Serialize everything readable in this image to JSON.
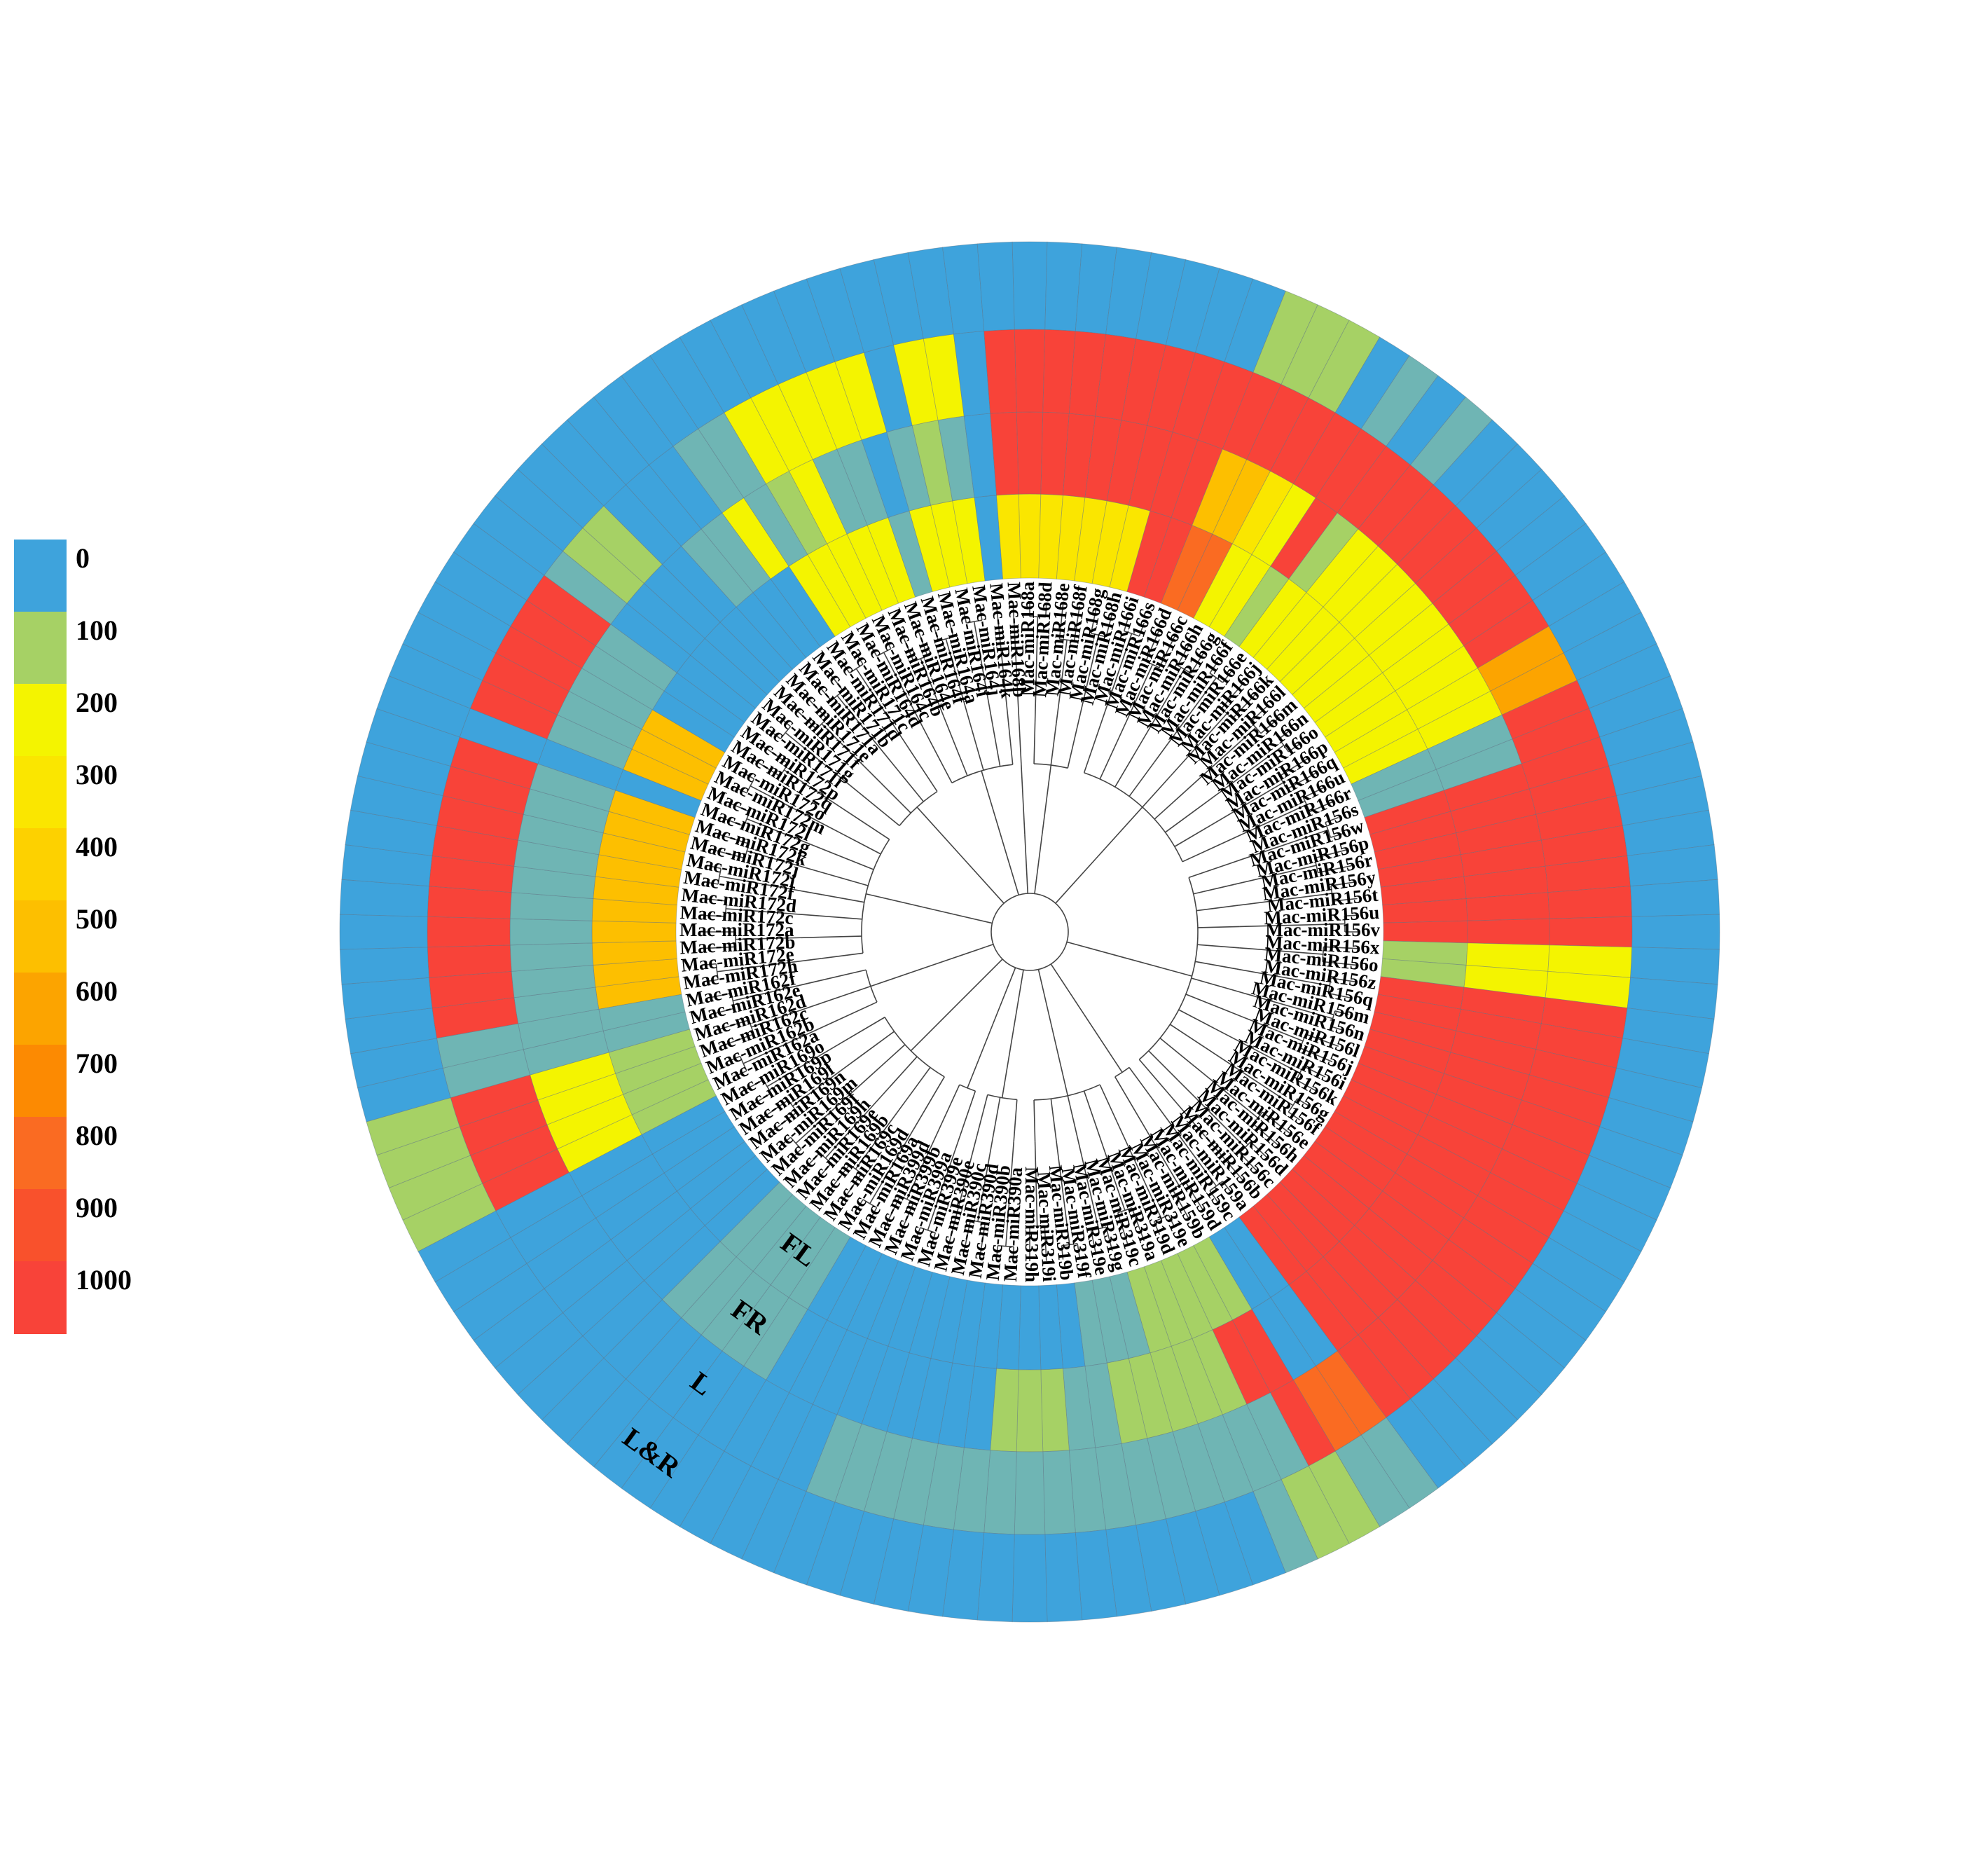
{
  "chart_data": {
    "type": "heatmap",
    "layout": "circular",
    "title": "",
    "color_scale": {
      "breaks": [
        "0",
        "100",
        "200",
        "300",
        "400",
        "500",
        "600",
        "700",
        "800",
        "900",
        "1000"
      ],
      "colors": [
        "#3ea3dc",
        "#a6d165",
        "#f4f400",
        "#fae600",
        "#fdd100",
        "#fdbf00",
        "#fca400",
        "#fc8a02",
        "#fa6b22",
        "#f9512c",
        "#f84339"
      ]
    },
    "rings": [
      "FL",
      "FR",
      "L",
      "L&R"
    ],
    "leaves": [
      {
        "label": "Mac-miR168a",
        "values": [
          300,
          1000,
          1000,
          0
        ]
      },
      {
        "label": "Mac-miR168d",
        "values": [
          300,
          1000,
          1000,
          0
        ]
      },
      {
        "label": "Mac-miR168e",
        "values": [
          300,
          1000,
          1000,
          0
        ]
      },
      {
        "label": "Mac-miR168f",
        "values": [
          300,
          1000,
          1000,
          0
        ]
      },
      {
        "label": "Mac-miR168g",
        "values": [
          300,
          1000,
          1000,
          0
        ]
      },
      {
        "label": "Mac-miR168h",
        "values": [
          300,
          1000,
          1000,
          0
        ]
      },
      {
        "label": "Mac-miR166i",
        "values": [
          1000,
          1000,
          1000,
          0
        ]
      },
      {
        "label": "Mac-miR166s",
        "values": [
          1000,
          1000,
          1000,
          0
        ]
      },
      {
        "label": "Mac-miR166d",
        "values": [
          800,
          500,
          1000,
          100
        ]
      },
      {
        "label": "Mac-miR166c",
        "values": [
          800,
          500,
          1000,
          100
        ]
      },
      {
        "label": "Mac-miR166h",
        "values": [
          200,
          300,
          1000,
          100
        ]
      },
      {
        "label": "Mac-miR166g",
        "values": [
          200,
          200,
          1000,
          0
        ]
      },
      {
        "label": "Mac-miR166f",
        "values": [
          100,
          1000,
          1000,
          50
        ]
      },
      {
        "label": "Mac-miR166e",
        "values": [
          200,
          100,
          1000,
          0
        ]
      },
      {
        "label": "Mac-miR166j",
        "values": [
          200,
          200,
          1000,
          50
        ]
      },
      {
        "label": "Mac-miR166k",
        "values": [
          200,
          200,
          1000,
          0
        ]
      },
      {
        "label": "Mac-miR166l",
        "values": [
          200,
          200,
          1000,
          0
        ]
      },
      {
        "label": "Mac-miR166m",
        "values": [
          200,
          200,
          1000,
          0
        ]
      },
      {
        "label": "Mac-miR166n",
        "values": [
          200,
          200,
          1000,
          0
        ]
      },
      {
        "label": "Mac-miR166o",
        "values": [
          200,
          200,
          1000,
          0
        ]
      },
      {
        "label": "Mac-miR166p",
        "values": [
          200,
          200,
          1000,
          0
        ]
      },
      {
        "label": "Mac-miR166q",
        "values": [
          200,
          200,
          600,
          0
        ]
      },
      {
        "label": "Mac-miR166u",
        "values": [
          200,
          200,
          600,
          0
        ]
      },
      {
        "label": "Mac-miR166r",
        "values": [
          50,
          50,
          1000,
          0
        ]
      },
      {
        "label": "Mac-miR156s",
        "values": [
          50,
          50,
          1000,
          0
        ]
      },
      {
        "label": "Mac-miR156w",
        "values": [
          1000,
          1000,
          1000,
          0
        ]
      },
      {
        "label": "Mac-miR156p",
        "values": [
          1000,
          1000,
          1000,
          0
        ]
      },
      {
        "label": "Mac-miR156r",
        "values": [
          1000,
          1000,
          1000,
          0
        ]
      },
      {
        "label": "Mac-miR156y",
        "values": [
          1000,
          1000,
          1000,
          0
        ]
      },
      {
        "label": "Mac-miR156t",
        "values": [
          1000,
          1000,
          1000,
          0
        ]
      },
      {
        "label": "Mac-miR156u",
        "values": [
          1000,
          1000,
          1000,
          0
        ]
      },
      {
        "label": "Mac-miR156v",
        "values": [
          1000,
          1000,
          1000,
          0
        ]
      },
      {
        "label": "Mac-miR156x",
        "values": [
          100,
          200,
          200,
          0
        ]
      },
      {
        "label": "Mac-miR156o",
        "values": [
          100,
          200,
          200,
          0
        ]
      },
      {
        "label": "Mac-miR156z",
        "values": [
          1000,
          1000,
          1000,
          0
        ]
      },
      {
        "label": "Mac-miR156q",
        "values": [
          1000,
          1000,
          1000,
          0
        ]
      },
      {
        "label": "Mac-miR156m",
        "values": [
          1000,
          1000,
          1000,
          0
        ]
      },
      {
        "label": "Mac-miR156n",
        "values": [
          1000,
          1000,
          1000,
          0
        ]
      },
      {
        "label": "Mac-miR156l",
        "values": [
          1000,
          1000,
          1000,
          0
        ]
      },
      {
        "label": "Mac-miR156j",
        "values": [
          1000,
          1000,
          1000,
          0
        ]
      },
      {
        "label": "Mac-miR156i",
        "values": [
          1000,
          1000,
          1000,
          0
        ]
      },
      {
        "label": "Mac-miR156k",
        "values": [
          1000,
          1000,
          1000,
          0
        ]
      },
      {
        "label": "Mac-miR156g",
        "values": [
          1000,
          1000,
          1000,
          0
        ]
      },
      {
        "label": "Mac-miR156f",
        "values": [
          1000,
          1000,
          1000,
          0
        ]
      },
      {
        "label": "Mac-miR156e",
        "values": [
          1000,
          1000,
          1000,
          0
        ]
      },
      {
        "label": "Mac-miR156h",
        "values": [
          1000,
          1000,
          1000,
          0
        ]
      },
      {
        "label": "Mac-miR156d",
        "values": [
          1000,
          1000,
          1000,
          0
        ]
      },
      {
        "label": "Mac-miR156c",
        "values": [
          1000,
          1000,
          1000,
          0
        ]
      },
      {
        "label": "Mac-miR156b",
        "values": [
          1000,
          1000,
          1000,
          0
        ]
      },
      {
        "label": "Mac-miR159a",
        "values": [
          1000,
          1000,
          1000,
          0
        ]
      },
      {
        "label": "Mac-miR159c",
        "values": [
          0,
          0,
          800,
          50
        ]
      },
      {
        "label": "Mac-miR159d",
        "values": [
          0,
          0,
          800,
          50
        ]
      },
      {
        "label": "Mac-miR159b",
        "values": [
          100,
          1000,
          1000,
          100
        ]
      },
      {
        "label": "Mac-miR319e",
        "values": [
          100,
          1000,
          50,
          100
        ]
      },
      {
        "label": "Mac-miR319d",
        "values": [
          100,
          100,
          50,
          50
        ]
      },
      {
        "label": "Mac-miR319a",
        "values": [
          100,
          100,
          50,
          0
        ]
      },
      {
        "label": "Mac-miR319c",
        "values": [
          100,
          100,
          50,
          0
        ]
      },
      {
        "label": "Mac-miR319g",
        "values": [
          50,
          100,
          50,
          0
        ]
      },
      {
        "label": "Mac-miR319e",
        "values": [
          50,
          100,
          50,
          0
        ]
      },
      {
        "label": "Mac-miR319f",
        "values": [
          50,
          50,
          50,
          0
        ]
      },
      {
        "label": "Mac-miR319b",
        "values": [
          0,
          50,
          50,
          0
        ]
      },
      {
        "label": "Mac-miR319i",
        "values": [
          0,
          100,
          50,
          0
        ]
      },
      {
        "label": "Mac-miR319h",
        "values": [
          0,
          100,
          50,
          0
        ]
      },
      {
        "label": "Mac-miR390a",
        "values": [
          0,
          100,
          50,
          0
        ]
      },
      {
        "label": "Mac-miR390b",
        "values": [
          0,
          0,
          50,
          0
        ]
      },
      {
        "label": "Mac-miR390d",
        "values": [
          0,
          0,
          50,
          0
        ]
      },
      {
        "label": "Mac-miR390c",
        "values": [
          0,
          0,
          50,
          0
        ]
      },
      {
        "label": "Mac-miR390e",
        "values": [
          0,
          0,
          50,
          0
        ]
      },
      {
        "label": "Mac-miR399e",
        "values": [
          0,
          0,
          50,
          0
        ]
      },
      {
        "label": "Mac-miR399a",
        "values": [
          0,
          0,
          50,
          0
        ]
      },
      {
        "label": "Mac-miR399b",
        "values": [
          0,
          0,
          0,
          0
        ]
      },
      {
        "label": "Mac-miR399d",
        "values": [
          0,
          0,
          0,
          0
        ]
      },
      {
        "label": "Mac-miR169a",
        "values": [
          0,
          0,
          0,
          0
        ]
      },
      {
        "label": "Mac-miR169d",
        "values": [
          50,
          50,
          0,
          0
        ]
      },
      {
        "label": "Mac-miR169c",
        "values": [
          50,
          50,
          0,
          0
        ]
      },
      {
        "label": "Mac-miR169b",
        "values": [
          50,
          50,
          0,
          0
        ]
      },
      {
        "label": "Mac-miR169e",
        "values": [
          50,
          50,
          0,
          0
        ]
      },
      {
        "label": "Mac-miR169h",
        "values": [
          50,
          50,
          0,
          0
        ]
      },
      {
        "label": "Mac-miR169f",
        "values": [
          0,
          0,
          0,
          0
        ]
      },
      {
        "label": "Mac-miR169m",
        "values": [
          0,
          0,
          0,
          0
        ]
      },
      {
        "label": "Mac-miR169n",
        "values": [
          0,
          0,
          0,
          0
        ]
      },
      {
        "label": "Mac-miR169l",
        "values": [
          0,
          0,
          0,
          0
        ]
      },
      {
        "label": "Mac-miR169p",
        "values": [
          0,
          0,
          0,
          0
        ]
      },
      {
        "label": "Mac-miR169o",
        "values": [
          0,
          0,
          0,
          0
        ]
      },
      {
        "label": "Mac-miR162a",
        "values": [
          100,
          200,
          1000,
          100
        ]
      },
      {
        "label": "Mac-miR162b",
        "values": [
          100,
          200,
          1000,
          100
        ]
      },
      {
        "label": "Mac-miR162c",
        "values": [
          100,
          200,
          1000,
          100
        ]
      },
      {
        "label": "Mac-miR162d",
        "values": [
          100,
          200,
          1000,
          100
        ]
      },
      {
        "label": "Mac-miR162e",
        "values": [
          50,
          50,
          50,
          0
        ]
      },
      {
        "label": "Mac-miR162f",
        "values": [
          50,
          50,
          50,
          0
        ]
      },
      {
        "label": "Mac-miR172h",
        "values": [
          500,
          50,
          1000,
          0
        ]
      },
      {
        "label": "Mac-miR172e",
        "values": [
          500,
          50,
          1000,
          0
        ]
      },
      {
        "label": "Mac-miR172b",
        "values": [
          500,
          50,
          1000,
          0
        ]
      },
      {
        "label": "Mac-miR172a",
        "values": [
          500,
          50,
          1000,
          0
        ]
      },
      {
        "label": "Mac-miR172c",
        "values": [
          500,
          50,
          1000,
          0
        ]
      },
      {
        "label": "Mac-miR172d",
        "values": [
          500,
          50,
          1000,
          0
        ]
      },
      {
        "label": "Mac-miR172f",
        "values": [
          500,
          50,
          1000,
          0
        ]
      },
      {
        "label": "Mac-miR172i",
        "values": [
          500,
          50,
          1000,
          0
        ]
      },
      {
        "label": "Mac-miR172j",
        "values": [
          500,
          50,
          1000,
          0
        ]
      },
      {
        "label": "Mac-miR172k",
        "values": [
          500,
          50,
          1000,
          0
        ]
      },
      {
        "label": "Mac-miR172g",
        "values": [
          0,
          0,
          0,
          0
        ]
      },
      {
        "label": "Mac-miR172l",
        "values": [
          500,
          50,
          1000,
          0
        ]
      },
      {
        "label": "Mac-miR172m",
        "values": [
          500,
          50,
          1000,
          0
        ]
      },
      {
        "label": "Mac-miR172o",
        "values": [
          500,
          50,
          1000,
          0
        ]
      },
      {
        "label": "Mac-miR172q",
        "values": [
          0,
          50,
          1000,
          0
        ]
      },
      {
        "label": "Mac-miR172p",
        "values": [
          0,
          50,
          1000,
          0
        ]
      },
      {
        "label": "Mac-miR171i",
        "values": [
          0,
          0,
          50,
          0
        ]
      },
      {
        "label": "Mac-miR171g",
        "values": [
          0,
          0,
          100,
          0
        ]
      },
      {
        "label": "Mac-miR171f",
        "values": [
          0,
          0,
          100,
          0
        ]
      },
      {
        "label": "Mac-miR171e",
        "values": [
          0,
          0,
          0,
          0
        ]
      },
      {
        "label": "Mac-miR171a",
        "values": [
          0,
          50,
          0,
          0
        ]
      },
      {
        "label": "Mac-miR171b",
        "values": [
          0,
          50,
          0,
          0
        ]
      },
      {
        "label": "Mac-miR171d",
        "values": [
          0,
          200,
          50,
          0
        ]
      },
      {
        "label": "Mac-miR171c",
        "values": [
          200,
          50,
          50,
          0
        ]
      },
      {
        "label": "Mac-miR164d",
        "values": [
          200,
          100,
          200,
          0
        ]
      },
      {
        "label": "Mac-miR164c",
        "values": [
          200,
          200,
          200,
          0
        ]
      },
      {
        "label": "Mac-miR164b",
        "values": [
          200,
          50,
          200,
          0
        ]
      },
      {
        "label": "Mac-miR164e",
        "values": [
          200,
          50,
          200,
          0
        ]
      },
      {
        "label": "Mac-miR164f",
        "values": [
          50,
          0,
          200,
          0
        ]
      },
      {
        "label": "Mac-miR164a",
        "values": [
          200,
          50,
          0,
          0
        ]
      },
      {
        "label": "Mac-miR164i",
        "values": [
          200,
          100,
          200,
          0
        ]
      },
      {
        "label": "Mac-miR164j",
        "values": [
          200,
          50,
          200,
          0
        ]
      },
      {
        "label": "Mac-miR164k",
        "values": [
          0,
          0,
          0,
          0
        ]
      },
      {
        "label": "Mac-miR168b",
        "values": [
          300,
          1000,
          1000,
          0
        ]
      }
    ]
  }
}
